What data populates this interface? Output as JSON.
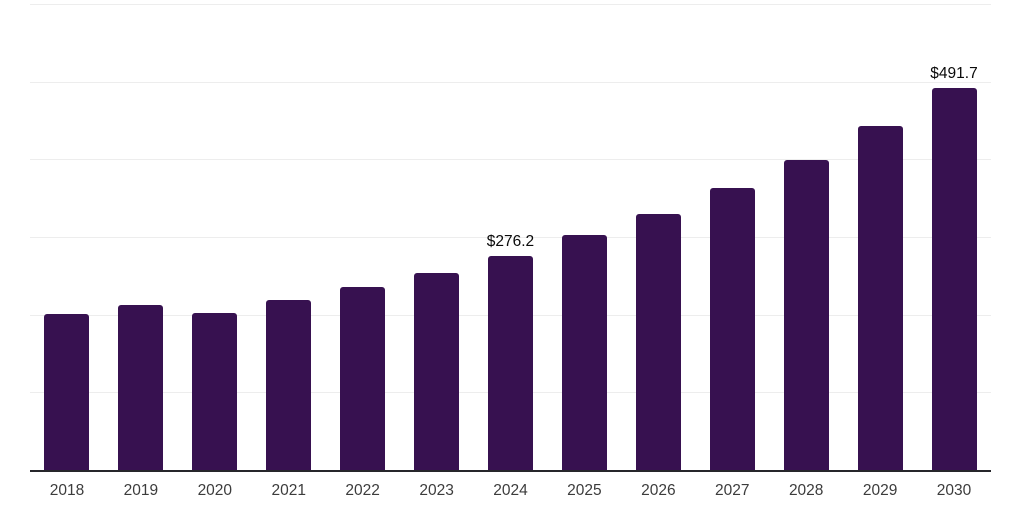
{
  "chart_data": {
    "type": "bar",
    "title": "",
    "xlabel": "",
    "ylabel": "",
    "categories": [
      "2018",
      "2019",
      "2020",
      "2021",
      "2022",
      "2023",
      "2024",
      "2025",
      "2026",
      "2027",
      "2028",
      "2029",
      "2030"
    ],
    "values": [
      200.5,
      212.0,
      201.8,
      218.4,
      235.5,
      254.2,
      276.2,
      302.7,
      329.5,
      362.7,
      399.8,
      443.2,
      491.7
    ],
    "data_labels": [
      "",
      "",
      "",
      "",
      "",
      "",
      "$276.2",
      "",
      "",
      "",
      "",
      "",
      "$491.7"
    ],
    "ylim": [
      0,
      600
    ],
    "gridline_step": 100,
    "grid": "horizontal",
    "legend": "none",
    "y_axis_labels": "none",
    "colors": {
      "bar": "#371150",
      "gridline": "#ededed",
      "axis_line": "#26262b",
      "data_label_text": "#0a0a0a",
      "tick_label_text": "#3c3c3c",
      "background": "#ffffff"
    }
  }
}
